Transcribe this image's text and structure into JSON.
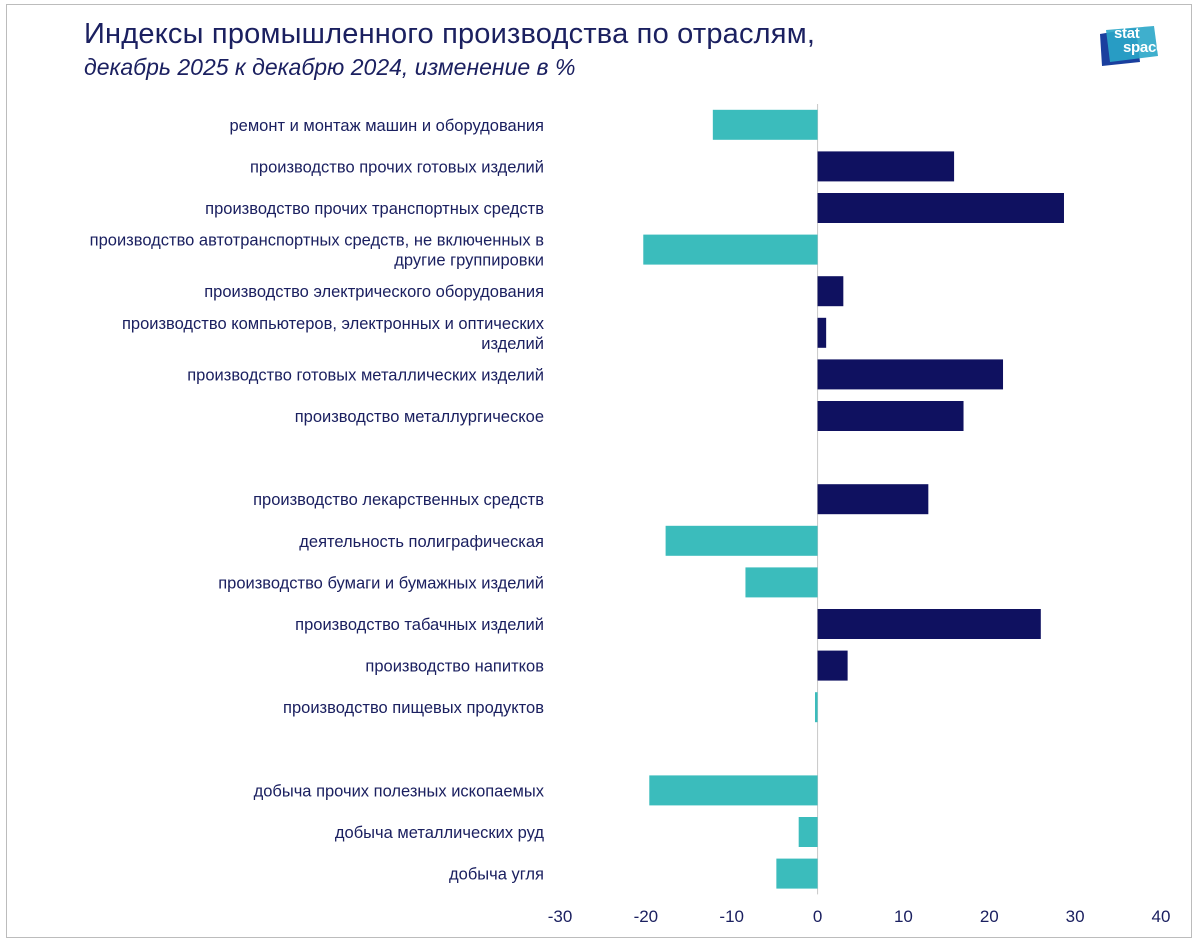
{
  "title": "Индексы промышленного производства по отраслям,",
  "subtitle": "декабрь 2025 к декабрю 2024, изменение в %",
  "logo": {
    "line1": "stat",
    "line2": "space"
  },
  "colors": {
    "positive": "#0f1160",
    "negative": "#3bbcbc",
    "text": "#1b2060",
    "axis": "#c8c8c8"
  },
  "chart_data": {
    "type": "bar",
    "orientation": "horizontal",
    "title": "Индексы промышленного производства по отраслям,",
    "subtitle": "декабрь 2025 к декабрю 2024, изменение в %",
    "xlim": [
      -30,
      40
    ],
    "xticks": [
      -30,
      -20,
      -10,
      0,
      10,
      20,
      30,
      40
    ],
    "grid": false,
    "categories": [
      [
        "ремонт и монтаж машин и оборудования"
      ],
      [
        "производство прочих готовых изделий"
      ],
      [
        "производство прочих транспортных средств"
      ],
      [
        "производство автотранспортных средств, не включенных в",
        "другие группировки"
      ],
      [
        "производство электрического оборудования"
      ],
      [
        "производство компьютеров, электронных и оптических",
        "изделий"
      ],
      [
        "производство готовых металлических изделий"
      ],
      [
        "производство металлургическое"
      ],
      [],
      [
        "производство лекарственных средств"
      ],
      [
        "деятельность полиграфическая"
      ],
      [
        "производство бумаги и бумажных изделий"
      ],
      [
        "производство табачных изделий"
      ],
      [
        "производство напитков"
      ],
      [
        "производство пищевых продуктов"
      ],
      [],
      [
        "добыча прочих полезных ископаемых"
      ],
      [
        "добыча металлических руд"
      ],
      [
        "добыча угля"
      ]
    ],
    "values": [
      -12.2,
      15.9,
      28.7,
      -20.3,
      3.0,
      1.0,
      21.6,
      17.0,
      null,
      12.9,
      -17.7,
      -8.4,
      26.0,
      3.5,
      -0.3,
      null,
      -19.6,
      -2.2,
      -4.8
    ]
  }
}
